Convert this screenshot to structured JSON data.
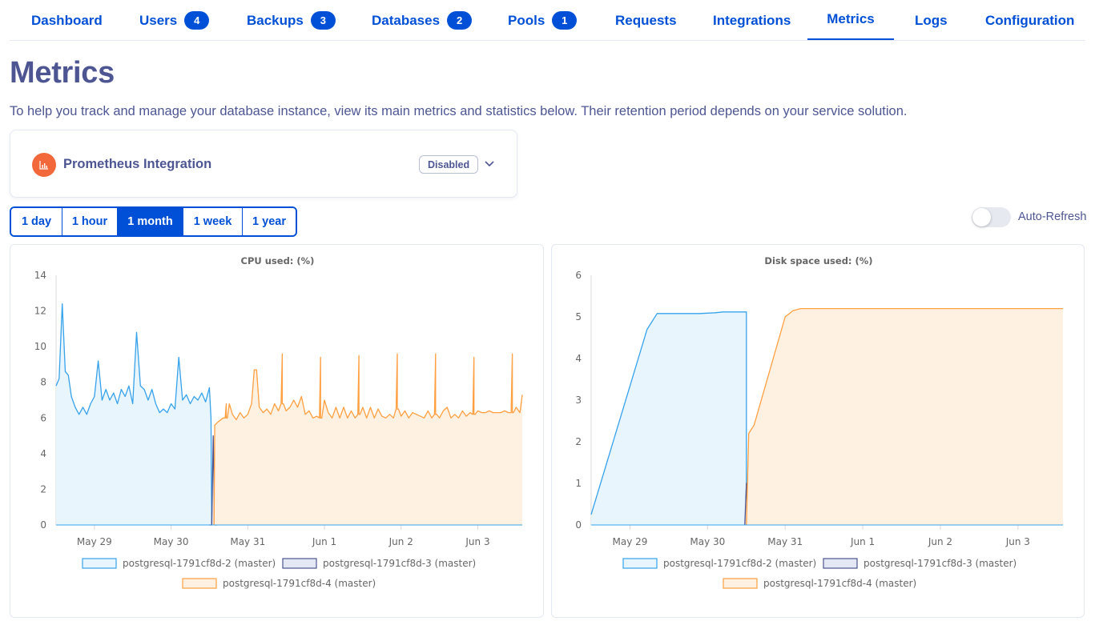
{
  "nav": {
    "items": [
      {
        "label": "Dashboard"
      },
      {
        "label": "Users",
        "badge": "4"
      },
      {
        "label": "Backups",
        "badge": "3"
      },
      {
        "label": "Databases",
        "badge": "2"
      },
      {
        "label": "Pools",
        "badge": "1"
      },
      {
        "label": "Requests"
      },
      {
        "label": "Integrations"
      },
      {
        "label": "Metrics",
        "active": true
      },
      {
        "label": "Logs"
      },
      {
        "label": "Configuration"
      }
    ]
  },
  "page": {
    "title": "Metrics",
    "description": "To help you track and manage your database instance, view its main metrics and statistics below. Their retention period depends on your service solution."
  },
  "prometheus": {
    "title": "Prometheus Integration",
    "status": "Disabled",
    "icon": "bar-chart-icon",
    "icon_color": "#f2683b"
  },
  "periods": {
    "options": [
      "1 day",
      "1 hour",
      "1 month",
      "1 week",
      "1 year"
    ],
    "selected": "1 month"
  },
  "auto_refresh": {
    "label": "Auto-Refresh",
    "enabled": false
  },
  "colors": {
    "accent": "#0050d7",
    "text": "#4d5693"
  },
  "chart_data": [
    {
      "type": "area",
      "title": "CPU used: (%)",
      "xlabel": "",
      "ylabel": "",
      "ylim": [
        0,
        14
      ],
      "yticks": [
        0,
        2,
        4,
        6,
        8,
        10,
        12,
        14
      ],
      "xlim": [
        0,
        6.08
      ],
      "xtick_positions": [
        0.5,
        1.5,
        2.5,
        3.5,
        4.5,
        5.5
      ],
      "xtick_labels": [
        "May 29",
        "May 30",
        "May 31",
        "Jun 1",
        "Jun 2",
        "Jun 3"
      ],
      "grid": false,
      "legend_position": "bottom",
      "series": [
        {
          "name": "postgresql-1791cf8d-2 (master)",
          "color": "#36a2eb",
          "fill": "#e8f5fd",
          "points": [
            [
              0,
              7.8
            ],
            [
              0.04,
              8.2
            ],
            [
              0.08,
              12.4
            ],
            [
              0.12,
              8.6
            ],
            [
              0.16,
              8.4
            ],
            [
              0.2,
              7.2
            ],
            [
              0.25,
              6.6
            ],
            [
              0.3,
              6.2
            ],
            [
              0.35,
              6.6
            ],
            [
              0.4,
              6.2
            ],
            [
              0.45,
              6.8
            ],
            [
              0.5,
              7.2
            ],
            [
              0.55,
              9.2
            ],
            [
              0.6,
              7.0
            ],
            [
              0.65,
              7.6
            ],
            [
              0.7,
              7.0
            ],
            [
              0.75,
              7.4
            ],
            [
              0.8,
              6.8
            ],
            [
              0.85,
              7.6
            ],
            [
              0.9,
              7.2
            ],
            [
              0.95,
              7.8
            ],
            [
              1.0,
              6.8
            ],
            [
              1.05,
              10.8
            ],
            [
              1.1,
              7.8
            ],
            [
              1.15,
              7.6
            ],
            [
              1.2,
              7.0
            ],
            [
              1.25,
              7.6
            ],
            [
              1.3,
              6.8
            ],
            [
              1.35,
              6.3
            ],
            [
              1.4,
              6.5
            ],
            [
              1.45,
              6.3
            ],
            [
              1.5,
              6.8
            ],
            [
              1.55,
              6.5
            ],
            [
              1.6,
              9.4
            ],
            [
              1.65,
              7.0
            ],
            [
              1.7,
              7.3
            ],
            [
              1.75,
              6.8
            ],
            [
              1.8,
              7.2
            ],
            [
              1.85,
              7.0
            ],
            [
              1.9,
              7.4
            ],
            [
              1.95,
              6.9
            ],
            [
              2.0,
              7.7
            ],
            [
              2.02,
              6.0
            ],
            [
              2.03,
              0
            ]
          ]
        },
        {
          "name": "postgresql-1791cf8d-3 (master)",
          "color": "#4c548f",
          "fill": "#e4e8f4",
          "points": [
            [
              2.0,
              0
            ],
            [
              2.03,
              0
            ],
            [
              2.05,
              5.0
            ],
            [
              2.07,
              0
            ],
            [
              2.1,
              0
            ]
          ]
        },
        {
          "name": "postgresql-1791cf8d-4 (master)",
          "color": "#ff9f40",
          "fill": "#fff1e2",
          "points": [
            [
              2.06,
              0
            ],
            [
              2.07,
              5.6
            ],
            [
              2.12,
              5.8
            ],
            [
              2.18,
              6.0
            ],
            [
              2.22,
              6.0
            ],
            [
              2.26,
              6.8
            ],
            [
              2.3,
              6.2
            ],
            [
              2.35,
              5.9
            ],
            [
              2.4,
              6.3
            ],
            [
              2.45,
              6.0
            ],
            [
              2.5,
              6.2
            ],
            [
              2.55,
              6.8
            ],
            [
              2.6,
              8.7
            ],
            [
              2.65,
              6.6
            ],
            [
              2.7,
              6.3
            ],
            [
              2.75,
              6.5
            ],
            [
              2.8,
              6.2
            ],
            [
              2.85,
              6.8
            ],
            [
              2.9,
              6.4
            ],
            [
              2.95,
              6.8
            ],
            [
              3.0,
              6.4
            ],
            [
              3.05,
              6.6
            ],
            [
              3.1,
              7.0
            ],
            [
              3.15,
              6.6
            ],
            [
              3.2,
              7.2
            ],
            [
              3.25,
              6.2
            ],
            [
              3.3,
              6.4
            ],
            [
              3.35,
              6.0
            ],
            [
              3.4,
              6.1
            ],
            [
              3.45,
              6.0
            ],
            [
              3.5,
              7.0
            ],
            [
              3.55,
              6.3
            ],
            [
              3.6,
              6.0
            ],
            [
              3.65,
              6.6
            ],
            [
              3.7,
              6.0
            ],
            [
              3.75,
              6.6
            ],
            [
              3.8,
              6.0
            ],
            [
              3.85,
              6.4
            ],
            [
              3.9,
              6.0
            ],
            [
              3.95,
              6.2
            ],
            [
              4.0,
              6.6
            ],
            [
              4.05,
              6.0
            ],
            [
              4.1,
              6.6
            ],
            [
              4.15,
              6.0
            ],
            [
              4.2,
              6.5
            ],
            [
              4.25,
              6.1
            ],
            [
              4.3,
              6.0
            ],
            [
              4.35,
              6.2
            ],
            [
              4.4,
              6.0
            ],
            [
              4.45,
              6.5
            ],
            [
              4.5,
              6.1
            ],
            [
              4.55,
              6.4
            ],
            [
              4.6,
              6.0
            ],
            [
              4.65,
              6.3
            ],
            [
              4.7,
              6.2
            ],
            [
              4.75,
              6.1
            ],
            [
              4.8,
              6.0
            ],
            [
              4.85,
              6.4
            ],
            [
              4.9,
              6.0
            ],
            [
              4.95,
              6.2
            ],
            [
              5.0,
              6.0
            ],
            [
              5.05,
              6.4
            ],
            [
              5.1,
              6.6
            ],
            [
              5.15,
              6.0
            ],
            [
              5.2,
              6.2
            ],
            [
              5.25,
              6.0
            ],
            [
              5.3,
              6.4
            ],
            [
              5.35,
              6.1
            ],
            [
              5.4,
              6.3
            ],
            [
              5.45,
              6.2
            ],
            [
              5.5,
              6.4
            ],
            [
              5.55,
              6.3
            ],
            [
              5.6,
              6.3
            ],
            [
              5.65,
              6.4
            ],
            [
              5.7,
              6.3
            ],
            [
              5.75,
              6.3
            ],
            [
              5.8,
              6.3
            ],
            [
              5.85,
              6.4
            ],
            [
              5.9,
              6.3
            ],
            [
              5.95,
              6.3
            ],
            [
              6.0,
              6.6
            ],
            [
              6.05,
              6.3
            ],
            [
              6.08,
              7.3
            ]
          ],
          "spikes": [
            [
              2.22,
              6.8
            ],
            [
              2.6,
              8.7
            ],
            [
              2.95,
              9.6
            ],
            [
              3.45,
              9.4
            ],
            [
              3.95,
              9.5
            ],
            [
              4.45,
              9.6
            ],
            [
              4.95,
              9.6
            ],
            [
              5.45,
              9.4
            ],
            [
              5.95,
              9.6
            ]
          ]
        }
      ]
    },
    {
      "type": "area",
      "title": "Disk space used: (%)",
      "xlabel": "",
      "ylabel": "",
      "ylim": [
        0,
        6
      ],
      "yticks": [
        0,
        1,
        2,
        3,
        4,
        5,
        6
      ],
      "xlim": [
        0,
        6.08
      ],
      "xtick_positions": [
        0.5,
        1.5,
        2.5,
        3.5,
        4.5,
        5.5
      ],
      "xtick_labels": [
        "May 29",
        "May 30",
        "May 31",
        "Jun 1",
        "Jun 2",
        "Jun 3"
      ],
      "grid": false,
      "legend_position": "bottom",
      "series": [
        {
          "name": "postgresql-1791cf8d-2 (master)",
          "color": "#36a2eb",
          "fill": "#e8f5fd",
          "points": [
            [
              0,
              0.25
            ],
            [
              0.72,
              4.7
            ],
            [
              0.85,
              5.08
            ],
            [
              1.4,
              5.08
            ],
            [
              1.6,
              5.1
            ],
            [
              1.7,
              5.12
            ],
            [
              2.0,
              5.12
            ],
            [
              2.0,
              0
            ]
          ]
        },
        {
          "name": "postgresql-1791cf8d-3 (master)",
          "color": "#4c548f",
          "fill": "#e4e8f4",
          "points": [
            [
              1.98,
              0
            ],
            [
              2.0,
              1.0
            ],
            [
              2.02,
              0
            ]
          ]
        },
        {
          "name": "postgresql-1791cf8d-4 (master)",
          "color": "#ff9f40",
          "fill": "#fff1e2",
          "points": [
            [
              2.0,
              0
            ],
            [
              2.03,
              2.2
            ],
            [
              2.1,
              2.4
            ],
            [
              2.5,
              5.0
            ],
            [
              2.6,
              5.15
            ],
            [
              2.7,
              5.2
            ],
            [
              6.08,
              5.2
            ]
          ]
        }
      ]
    }
  ]
}
